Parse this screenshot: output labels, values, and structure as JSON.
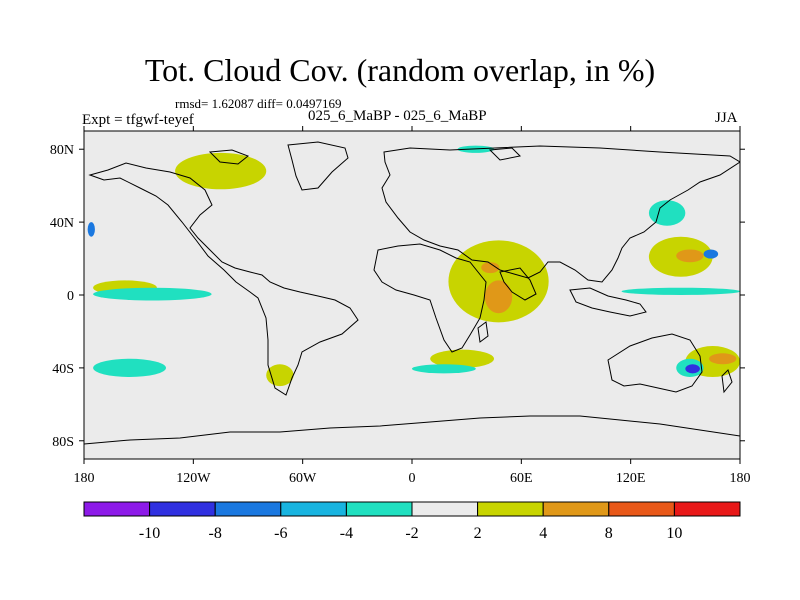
{
  "header": {
    "title": "Tot. Cloud Cov. (random overlap, in %)",
    "stats": "rmsd= 1.62087 diff= 0.0497169",
    "experiment": "Expt = tfgwf-teyef",
    "case": "025_6_MaBP - 025_6_MaBP",
    "season": "JJA"
  },
  "chart_data": {
    "type": "heatmap",
    "projection": "cylindrical equidistant",
    "title": "Tot. Cloud Cov. (random overlap, in %)",
    "xlabel": "",
    "ylabel": "",
    "xlim": [
      -180,
      180
    ],
    "ylim": [
      -90,
      90
    ],
    "x_ticks": [
      {
        "value": -180,
        "label": "180"
      },
      {
        "value": -120,
        "label": "120W"
      },
      {
        "value": -60,
        "label": "60W"
      },
      {
        "value": 0,
        "label": "0"
      },
      {
        "value": 60,
        "label": "60E"
      },
      {
        "value": 120,
        "label": "120E"
      },
      {
        "value": 180,
        "label": "180"
      }
    ],
    "y_ticks": [
      {
        "value": 80,
        "label": "80N"
      },
      {
        "value": 40,
        "label": "40N"
      },
      {
        "value": 0,
        "label": "0"
      },
      {
        "value": -40,
        "label": "40S"
      },
      {
        "value": -80,
        "label": "80S"
      }
    ],
    "colorbar": {
      "labels": [
        "-10",
        "-8",
        "-6",
        "-4",
        "-2",
        "2",
        "4",
        "8",
        "10"
      ],
      "colors": [
        "#8d1ae8",
        "#3030e0",
        "#1a78e0",
        "#18b4e0",
        "#20e0c0",
        "#ebebeb",
        "#c8d400",
        "#e09818",
        "#e85818",
        "#e81818"
      ]
    },
    "background_color": "#ebebeb",
    "regions": [
      {
        "bin": "4 to 8",
        "lon": [
          40,
          55
        ],
        "lat": [
          -10,
          8
        ]
      },
      {
        "bin": "4 to 8",
        "lon": [
          38,
          48
        ],
        "lat": [
          12,
          18
        ]
      },
      {
        "bin": "4 to 8",
        "lon": [
          145,
          160
        ],
        "lat": [
          18,
          25
        ]
      },
      {
        "bin": "4 to 8",
        "lon": [
          163,
          178
        ],
        "lat": [
          -32,
          -38
        ]
      },
      {
        "bin": "2 to 4",
        "lon": [
          20,
          75
        ],
        "lat": [
          -15,
          30
        ]
      },
      {
        "bin": "2 to 4",
        "lon": [
          -130,
          -80
        ],
        "lat": [
          58,
          78
        ]
      },
      {
        "bin": "2 to 4",
        "lon": [
          -175,
          -140
        ],
        "lat": [
          0,
          8
        ]
      },
      {
        "bin": "2 to 4",
        "lon": [
          130,
          165
        ],
        "lat": [
          10,
          32
        ]
      },
      {
        "bin": "2 to 4",
        "lon": [
          150,
          180
        ],
        "lat": [
          -28,
          -45
        ]
      },
      {
        "bin": "2 to 4",
        "lon": [
          -80,
          -65
        ],
        "lat": [
          -38,
          -50
        ]
      },
      {
        "bin": "2 to 4",
        "lon": [
          10,
          45
        ],
        "lat": [
          -30,
          -40
        ]
      },
      {
        "bin": "-4 to -2",
        "lon": [
          -175,
          -135
        ],
        "lat": [
          -45,
          -35
        ]
      },
      {
        "bin": "-4 to -2",
        "lon": [
          -175,
          -110
        ],
        "lat": [
          -3,
          4
        ]
      },
      {
        "bin": "-4 to -2",
        "lon": [
          0,
          35
        ],
        "lat": [
          -38,
          -43
        ]
      },
      {
        "bin": "-4 to -2",
        "lon": [
          115,
          180
        ],
        "lat": [
          0,
          4
        ]
      },
      {
        "bin": "-4 to -2",
        "lon": [
          25,
          45
        ],
        "lat": [
          78,
          82
        ]
      },
      {
        "bin": "-4 to -2",
        "lon": [
          130,
          150
        ],
        "lat": [
          38,
          52
        ]
      },
      {
        "bin": "-4 to -2",
        "lon": [
          145,
          160
        ],
        "lat": [
          -35,
          -45
        ]
      },
      {
        "bin": "-8 to -6",
        "lon": [
          -178,
          -174
        ],
        "lat": [
          32,
          40
        ]
      },
      {
        "bin": "-8 to -6",
        "lon": [
          160,
          168
        ],
        "lat": [
          20,
          25
        ]
      },
      {
        "bin": "-10 to -8",
        "lon": [
          150,
          158
        ],
        "lat": [
          -38,
          -43
        ]
      }
    ]
  }
}
